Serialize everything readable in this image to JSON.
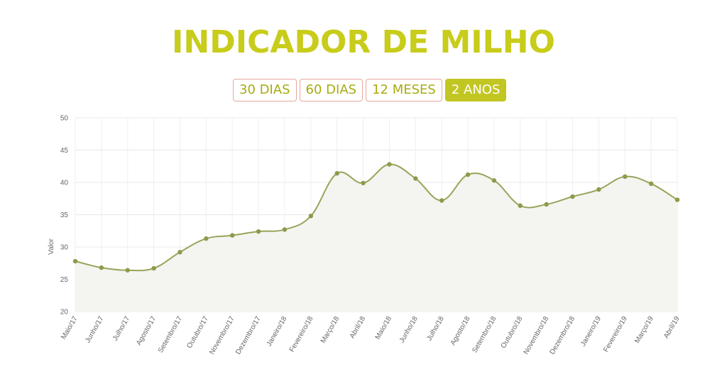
{
  "header": {
    "title": "INDICADOR DE MILHO"
  },
  "range_tabs": [
    {
      "label": "30 DIAS",
      "active": false
    },
    {
      "label": "60 DIAS",
      "active": false
    },
    {
      "label": "12 MESES",
      "active": false
    },
    {
      "label": "2 ANOS",
      "active": true
    }
  ],
  "colors": {
    "accent": "#c2c622",
    "line": "#9aa35a",
    "point": "#8f9a4a",
    "area": "#f3f3ee",
    "tab_border": "#e7a79f"
  },
  "chart_data": {
    "type": "line",
    "title": "",
    "xlabel": "",
    "ylabel": "Valor",
    "ylim": [
      20,
      50
    ],
    "yticks": [
      20,
      25,
      30,
      35,
      40,
      45,
      50
    ],
    "grid": true,
    "categories": [
      "Maio/17",
      "Junho/17",
      "Julho/17",
      "Agosto/17",
      "Setembro/17",
      "Outubro/17",
      "Novembro/17",
      "Dezembro/17",
      "Janeiro/18",
      "Fevereiro/18",
      "Março/18",
      "Abril/18",
      "Maio/18",
      "Junho/18",
      "Julho/18",
      "Agosto/18",
      "Setembro/18",
      "Outubro/18",
      "Novembro/18",
      "Dezembro/18",
      "Janeiro/19",
      "Fevereiro/19",
      "Março/19",
      "Abril/19"
    ],
    "series": [
      {
        "name": "",
        "values": [
          27.8,
          26.8,
          26.4,
          26.7,
          29.2,
          31.3,
          31.8,
          32.4,
          32.7,
          34.8,
          41.4,
          39.9,
          42.8,
          40.6,
          37.2,
          41.2,
          40.3,
          36.4,
          36.6,
          37.8,
          38.9,
          40.9,
          39.8,
          37.3
        ]
      }
    ]
  }
}
